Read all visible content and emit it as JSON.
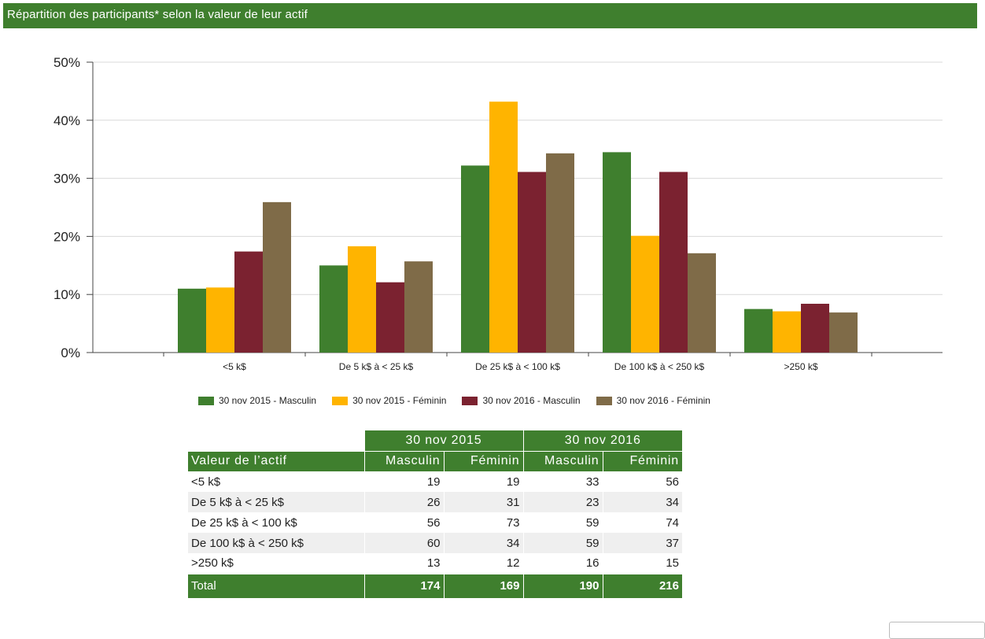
{
  "page_title": "Répartition des participants* selon la valeur de leur actif",
  "colors": {
    "accent": "#3f7f2e",
    "series": [
      "#3f7f2e",
      "#ffb400",
      "#7b2230",
      "#7f6b48"
    ]
  },
  "chart_data": {
    "type": "bar",
    "categories": [
      "<5 k$",
      "De 5 k$ à < 25 k$",
      "De 25 k$ à < 100 k$",
      "De 100 k$ à < 250 k$",
      ">250 k$"
    ],
    "series": [
      {
        "name": "30 nov 2015 - Masculin",
        "values": [
          11.0,
          15.0,
          32.2,
          34.5,
          7.5
        ]
      },
      {
        "name": "30 nov 2015 - Féminin",
        "values": [
          11.2,
          18.3,
          43.2,
          20.1,
          7.1
        ]
      },
      {
        "name": "30 nov 2016 - Masculin",
        "values": [
          17.4,
          12.1,
          31.1,
          31.1,
          8.4
        ]
      },
      {
        "name": "30 nov 2016 - Féminin",
        "values": [
          25.9,
          15.7,
          34.3,
          17.1,
          6.9
        ]
      }
    ],
    "ylim": [
      0,
      50
    ],
    "yticks": [
      "0%",
      "10%",
      "20%",
      "30%",
      "40%",
      "50%"
    ],
    "ytick_values": [
      0,
      10,
      20,
      30,
      40,
      50
    ],
    "grid": true,
    "legend_position": "bottom"
  },
  "table": {
    "group_headers": [
      "30 nov 2015",
      "30 nov 2016"
    ],
    "column_headers": [
      "Valeur de l’actif",
      "Masculin",
      "Féminin",
      "Masculin",
      "Féminin"
    ],
    "rows": [
      [
        "<5 k$",
        "19",
        "19",
        "33",
        "56"
      ],
      [
        "De 5 k$ à < 25 k$",
        "26",
        "31",
        "23",
        "34"
      ],
      [
        "De 25 k$ à < 100 k$",
        "56",
        "73",
        "59",
        "74"
      ],
      [
        "De 100 k$ à < 250 k$",
        "60",
        "34",
        "59",
        "37"
      ],
      [
        ">250 k$",
        "13",
        "12",
        "16",
        "15"
      ]
    ],
    "total_row": [
      "Total",
      "174",
      "169",
      "190",
      "216"
    ]
  }
}
